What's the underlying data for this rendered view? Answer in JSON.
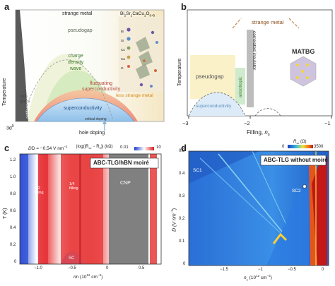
{
  "panels": {
    "a": {
      "label": "a",
      "y_axis": "Temperature",
      "x_left": "3d",
      "x_left_sup": "9",
      "x_center": "hole doping",
      "regions": {
        "strange_metal": "strange metal",
        "pseudogap": "pseudogap",
        "cdw_1": "charge",
        "cdw_2": "density",
        "cdw_3": "wave",
        "fluct_1": "fluctuating",
        "fluct_2": "superconductivity",
        "less_strange": "less strange metal",
        "superconductivity": "superconductivity",
        "spin_glass_1": "spin",
        "spin_glass_2": "glass",
        "afm": "antiferromagnetic order",
        "critical_doping": "critical doping"
      },
      "formula": {
        "base": "Bi",
        "parts": [
          "2",
          "Sr",
          "2",
          "CaCu",
          "2",
          "O",
          "8+δ"
        ]
      },
      "atoms": [
        "Bi",
        "Sr",
        "Cu",
        "Ca",
        "O"
      ]
    },
    "b": {
      "label": "b",
      "y_axis": "Temperature",
      "x_axis": "Filling, ",
      "x_axis_symbol": "n",
      "x_axis_sub": "0",
      "ticks": [
        "−3",
        "−2",
        "−1"
      ],
      "regions": {
        "strange_metal": "strange metal",
        "pseudogap": "pseudogap",
        "anisotropic": "anisotropic",
        "correlated_insulator": "correlated insulator",
        "superconductivity": "superconductivity",
        "matbg": "MATBG"
      }
    },
    "c": {
      "label": "c",
      "condition_1": "D = −0.54 V nm",
      "condition_1_sup": "−1",
      "colorbar_label": "|log(|R",
      "colorbar_label_rest": "xx",
      "colorbar_label_end": " − R",
      "colorbar_label_0": "0",
      "colorbar_label_close": ")| (kΩ)",
      "colorbar_min": "0.01",
      "colorbar_max": "10",
      "title": "ABC-TLG/hBN moiré",
      "y_axis": "T (K)",
      "y_ticks": [
        "1.2",
        "1.0",
        "0.8",
        "0.6",
        "0.4",
        "0.2",
        "0"
      ],
      "x_axis": "n (10",
      "x_axis_sup": "12",
      "x_axis_end": " cm",
      "x_axis_sup2": "−2",
      "x_axis_close": ")",
      "x_ticks": [
        "−1.0",
        "−0.5",
        "0",
        "0.5"
      ],
      "annotations": {
        "half_1": "1/2",
        "half_2": "filling",
        "quarter_1": "1/4",
        "quarter_2": "filling",
        "cnp": "CNP",
        "sc": "SC"
      }
    },
    "d": {
      "label": "d",
      "colorbar_label": "R",
      "colorbar_sub": "xx",
      "colorbar_unit": " (Ω)",
      "colorbar_min": "0",
      "colorbar_max": "3500",
      "title": "ABC-TLG without moiré",
      "y_axis": "D (V nm",
      "y_axis_sup": "−1",
      "y_axis_close": ")",
      "y_ticks": [
        "0.5",
        "0.4",
        "0.3",
        "0.2",
        "0.1",
        "0"
      ],
      "x_axis": "n",
      "x_axis_sub": "e",
      "x_axis_rest": " (10",
      "x_axis_sup": "12",
      "x_axis_end": " cm",
      "x_axis_sup2": "−2",
      "x_axis_close": ")",
      "x_ticks": [
        "−1.5",
        "−1",
        "−0.5",
        "0"
      ],
      "annotations": {
        "sc1": "SC1",
        "sc2": "SC2"
      }
    }
  }
}
